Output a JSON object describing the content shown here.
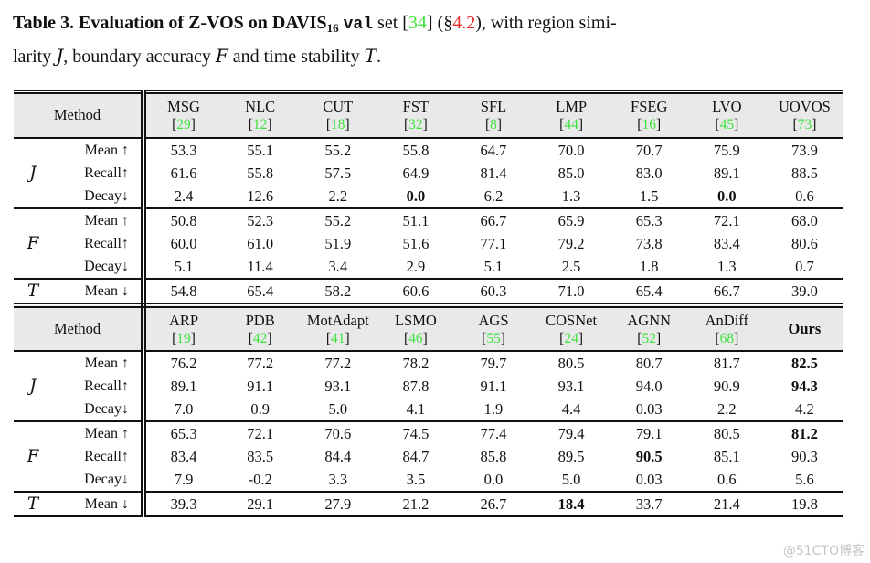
{
  "caption": {
    "bold_prefix": "Table 3. Evaluation of Z-VOS on DAVIS",
    "subscript": "16",
    "tt": "val",
    "after_tt": " set [",
    "cite": "34",
    "between": "] (§",
    "section_ref": "4.2",
    "line1_tail": "), with region simi-",
    "line2_a": "larity ",
    "sym_J": "J",
    "line2_b": ", boundary accuracy ",
    "sym_F": "F",
    "line2_c": " and time stability ",
    "sym_T": "T",
    "line2_d": "."
  },
  "colors": {
    "citation_green": "#3fe23f",
    "section_red": "#ee2c2c",
    "header_gray": "#e9e9e9"
  },
  "table": {
    "method_header": "Method",
    "blocks": [
      {
        "methods": [
          {
            "name": "MSG",
            "cite": "29"
          },
          {
            "name": "NLC",
            "cite": "12"
          },
          {
            "name": "CUT",
            "cite": "18"
          },
          {
            "name": "FST",
            "cite": "32"
          },
          {
            "name": "SFL",
            "cite": "8"
          },
          {
            "name": "LMP",
            "cite": "44"
          },
          {
            "name": "FSEG",
            "cite": "16"
          },
          {
            "name": "LVO",
            "cite": "45"
          },
          {
            "name": "UOVOS",
            "cite": "73"
          }
        ],
        "groups": [
          {
            "symbol": "J",
            "rows": [
              {
                "metric": "Mean ↑",
                "values": [
                  "53.3",
                  "55.1",
                  "55.2",
                  "55.8",
                  "64.7",
                  "70.0",
                  "70.7",
                  "75.9",
                  "73.9"
                ],
                "bold": []
              },
              {
                "metric": "Recall↑",
                "values": [
                  "61.6",
                  "55.8",
                  "57.5",
                  "64.9",
                  "81.4",
                  "85.0",
                  "83.0",
                  "89.1",
                  "88.5"
                ],
                "bold": []
              },
              {
                "metric": "Decay↓",
                "values": [
                  "2.4",
                  "12.6",
                  "2.2",
                  "0.0",
                  "6.2",
                  "1.3",
                  "1.5",
                  "0.0",
                  "0.6"
                ],
                "bold": [
                  3,
                  7
                ]
              }
            ]
          },
          {
            "symbol": "F",
            "rows": [
              {
                "metric": "Mean ↑",
                "values": [
                  "50.8",
                  "52.3",
                  "55.2",
                  "51.1",
                  "66.7",
                  "65.9",
                  "65.3",
                  "72.1",
                  "68.0"
                ],
                "bold": []
              },
              {
                "metric": "Recall↑",
                "values": [
                  "60.0",
                  "61.0",
                  "51.9",
                  "51.6",
                  "77.1",
                  "79.2",
                  "73.8",
                  "83.4",
                  "80.6"
                ],
                "bold": []
              },
              {
                "metric": "Decay↓",
                "values": [
                  "5.1",
                  "11.4",
                  "3.4",
                  "2.9",
                  "5.1",
                  "2.5",
                  "1.8",
                  "1.3",
                  "0.7"
                ],
                "bold": []
              }
            ]
          },
          {
            "symbol": "T",
            "rows": [
              {
                "metric": "Mean ↓",
                "values": [
                  "54.8",
                  "65.4",
                  "58.2",
                  "60.6",
                  "60.3",
                  "71.0",
                  "65.4",
                  "66.7",
                  "39.0"
                ],
                "bold": []
              }
            ]
          }
        ]
      },
      {
        "methods": [
          {
            "name": "ARP",
            "cite": "19"
          },
          {
            "name": "PDB",
            "cite": "42"
          },
          {
            "name": "MotAdapt",
            "cite": "41"
          },
          {
            "name": "LSMO",
            "cite": "46"
          },
          {
            "name": "AGS",
            "cite": "55"
          },
          {
            "name": "COSNet",
            "cite": "24"
          },
          {
            "name": "AGNN",
            "cite": "52"
          },
          {
            "name": "AnDiff",
            "cite": "68"
          },
          {
            "name": "Ours",
            "cite": null,
            "bold": true
          }
        ],
        "groups": [
          {
            "symbol": "J",
            "rows": [
              {
                "metric": "Mean ↑",
                "values": [
                  "76.2",
                  "77.2",
                  "77.2",
                  "78.2",
                  "79.7",
                  "80.5",
                  "80.7",
                  "81.7",
                  "82.5"
                ],
                "bold": [
                  8
                ]
              },
              {
                "metric": "Recall↑",
                "values": [
                  "89.1",
                  "91.1",
                  "93.1",
                  "87.8",
                  "91.1",
                  "93.1",
                  "94.0",
                  "90.9",
                  "94.3"
                ],
                "bold": [
                  8
                ]
              },
              {
                "metric": "Decay↓",
                "values": [
                  "7.0",
                  "0.9",
                  "5.0",
                  "4.1",
                  "1.9",
                  "4.4",
                  "0.03",
                  "2.2",
                  "4.2"
                ],
                "bold": []
              }
            ]
          },
          {
            "symbol": "F",
            "rows": [
              {
                "metric": "Mean ↑",
                "values": [
                  "65.3",
                  "72.1",
                  "70.6",
                  "74.5",
                  "77.4",
                  "79.4",
                  "79.1",
                  "80.5",
                  "81.2"
                ],
                "bold": [
                  8
                ]
              },
              {
                "metric": "Recall↑",
                "values": [
                  "83.4",
                  "83.5",
                  "84.4",
                  "84.7",
                  "85.8",
                  "89.5",
                  "90.5",
                  "85.1",
                  "90.3"
                ],
                "bold": [
                  6
                ]
              },
              {
                "metric": "Decay↓",
                "values": [
                  "7.9",
                  "-0.2",
                  "3.3",
                  "3.5",
                  "0.0",
                  "5.0",
                  "0.03",
                  "0.6",
                  "5.6"
                ],
                "bold": []
              }
            ]
          },
          {
            "symbol": "T",
            "rows": [
              {
                "metric": "Mean ↓",
                "values": [
                  "39.3",
                  "29.1",
                  "27.9",
                  "21.2",
                  "26.7",
                  "18.4",
                  "33.7",
                  "21.4",
                  "19.8"
                ],
                "bold": [
                  5
                ]
              }
            ]
          }
        ]
      }
    ]
  },
  "watermark": "@51CTO博客"
}
